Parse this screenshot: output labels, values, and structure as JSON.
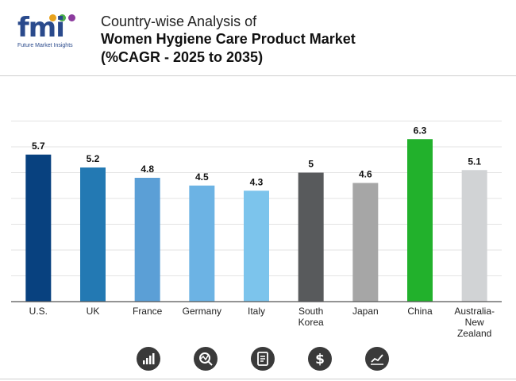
{
  "header": {
    "logo_text": "fmi",
    "logo_tagline": "Future Market Insights",
    "title_line1": "Country-wise Analysis of",
    "title_line2": "Women Hygiene Care Product Market",
    "title_line3": "(%CAGR - 2025 to 2035)"
  },
  "chart_data": {
    "type": "bar",
    "title": "Country-wise Analysis of Women Hygiene Care Product Market (%CAGR - 2025 to 2035)",
    "categories": [
      "U.S.",
      "UK",
      "France",
      "Germany",
      "Italy",
      "South Korea",
      "Japan",
      "China",
      "Australia-New Zealand"
    ],
    "category_lines": [
      [
        "U.S."
      ],
      [
        "UK"
      ],
      [
        "France"
      ],
      [
        "Germany"
      ],
      [
        "Italy"
      ],
      [
        "South",
        "Korea"
      ],
      [
        "Japan"
      ],
      [
        "China"
      ],
      [
        "Australia-",
        "New",
        "Zealand"
      ]
    ],
    "values": [
      5.7,
      5.2,
      4.8,
      4.5,
      4.3,
      5,
      4.6,
      6.3,
      5.1
    ],
    "value_labels": [
      "5.7",
      "5.2",
      "4.8",
      "4.5",
      "4.3",
      "5",
      "4.6",
      "6.3",
      "5.1"
    ],
    "colors": [
      "#08417f",
      "#2379b3",
      "#5b9fd6",
      "#6cb3e4",
      "#7cc4ec",
      "#585a5c",
      "#a6a6a6",
      "#22b12c",
      "#d1d3d5"
    ],
    "xlabel": "",
    "ylabel": "",
    "ylim": [
      0,
      7
    ],
    "grid": true
  },
  "footer_icons": [
    "bar-chart-icon",
    "analytics-icon",
    "document-icon",
    "dollar-icon",
    "trend-chart-icon"
  ]
}
